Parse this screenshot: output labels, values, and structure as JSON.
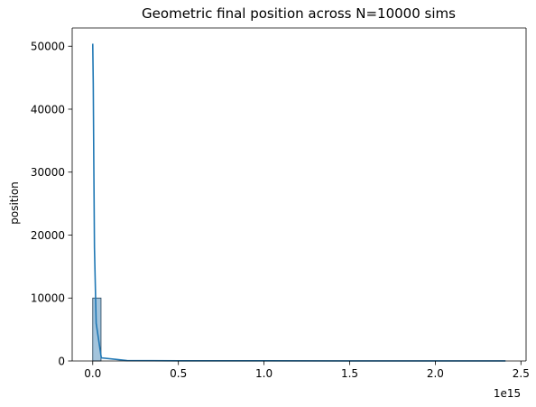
{
  "chart_data": {
    "type": "bar",
    "title": "Geometric final position across N=10000 sims",
    "xlabel": "",
    "ylabel": "position",
    "x_offset_label": "1e15",
    "xlim": [
      -0.12,
      2.53
    ],
    "ylim": [
      0,
      52900
    ],
    "x_ticks": [
      0.0,
      0.5,
      1.0,
      1.5,
      2.0,
      2.5
    ],
    "x_tick_labels": [
      "0.0",
      "0.5",
      "1.0",
      "1.5",
      "2.0",
      "2.5"
    ],
    "y_ticks": [
      0,
      10000,
      20000,
      30000,
      40000,
      50000
    ],
    "y_tick_labels": [
      "0",
      "10000",
      "20000",
      "30000",
      "40000",
      "50000"
    ],
    "grid": false,
    "bin_width": 0.0483,
    "histogram_bins": [
      {
        "x_start": 0.0,
        "count": 10000
      }
    ],
    "kde_line": {
      "x": [
        0.0,
        0.003,
        0.006,
        0.01,
        0.02,
        0.05,
        0.2,
        0.5,
        1.0,
        1.5,
        2.0,
        2.41
      ],
      "y": [
        50400,
        44000,
        32000,
        18000,
        6000,
        500,
        60,
        30,
        20,
        15,
        10,
        5
      ]
    },
    "colors": {
      "bar_fill": "#a3c4dc",
      "bar_edge": "#1f3f57",
      "line": "#1f77b4",
      "axis": "#000000"
    }
  }
}
